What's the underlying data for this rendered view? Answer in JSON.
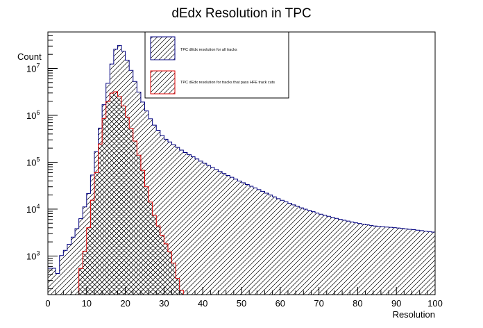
{
  "chart_data": {
    "type": "histogram",
    "title": "dEdx Resolution in TPC",
    "xlabel": "Resolution",
    "ylabel": "Count",
    "xlim": [
      0,
      100
    ],
    "ylim": [
      150,
      60000000
    ],
    "yscale": "log",
    "grid": false,
    "legend_position": "top-center",
    "x_ticks": [
      "0",
      "10",
      "20",
      "30",
      "40",
      "50",
      "60",
      "70",
      "80",
      "90",
      "100"
    ],
    "y_ticks": [
      {
        "value": 1000,
        "base": "10",
        "exp": "3"
      },
      {
        "value": 10000,
        "base": "10",
        "exp": "4"
      },
      {
        "value": 100000,
        "base": "10",
        "exp": "5"
      },
      {
        "value": 1000000,
        "base": "10",
        "exp": "6"
      },
      {
        "value": 10000000,
        "base": "10",
        "exp": "7"
      }
    ],
    "series": [
      {
        "name": "TPC dEdx resolution for all tracks",
        "color": "#000080",
        "hatch": "single-diagonal",
        "knots": [
          [
            0,
            200
          ],
          [
            1,
            1500
          ],
          [
            2,
            200
          ],
          [
            3,
            900
          ],
          [
            5,
            1500
          ],
          [
            7,
            3000
          ],
          [
            9,
            8000
          ],
          [
            11,
            30000
          ],
          [
            13,
            300000
          ],
          [
            15,
            3000000
          ],
          [
            17,
            20000000
          ],
          [
            18,
            33000000
          ],
          [
            19,
            29000000
          ],
          [
            21,
            12000000
          ],
          [
            23,
            4000000
          ],
          [
            25,
            1500000
          ],
          [
            27,
            700000
          ],
          [
            30,
            330000
          ],
          [
            35,
            170000
          ],
          [
            40,
            100000
          ],
          [
            45,
            60000
          ],
          [
            50,
            38000
          ],
          [
            55,
            25000
          ],
          [
            60,
            16000
          ],
          [
            65,
            11000
          ],
          [
            70,
            8000
          ],
          [
            75,
            6200
          ],
          [
            80,
            5000
          ],
          [
            85,
            4300
          ],
          [
            90,
            4000
          ],
          [
            95,
            3600
          ],
          [
            100,
            3200
          ]
        ]
      },
      {
        "name": "TPC dEdx resolution for tracks that pass HFE track cuts",
        "color": "#e00000",
        "hatch": "cross-diagonal",
        "knots": [
          [
            8,
            1
          ],
          [
            8.1,
            400
          ],
          [
            9,
            800
          ],
          [
            10,
            2000
          ],
          [
            11,
            8000
          ],
          [
            12,
            30000
          ],
          [
            13,
            120000
          ],
          [
            14,
            500000
          ],
          [
            15,
            1500000
          ],
          [
            16,
            2600000
          ],
          [
            17,
            3400000
          ],
          [
            18,
            3000000
          ],
          [
            19,
            2100000
          ],
          [
            20,
            1200000
          ],
          [
            21,
            700000
          ],
          [
            22,
            400000
          ],
          [
            23,
            200000
          ],
          [
            24,
            100000
          ],
          [
            25,
            45000
          ],
          [
            26,
            20000
          ],
          [
            27,
            10000
          ],
          [
            28,
            5500
          ],
          [
            29,
            3500
          ],
          [
            30,
            2200
          ],
          [
            31,
            1500
          ],
          [
            32,
            1000
          ],
          [
            33,
            500
          ],
          [
            34,
            220
          ],
          [
            35,
            160
          ]
        ]
      }
    ]
  }
}
